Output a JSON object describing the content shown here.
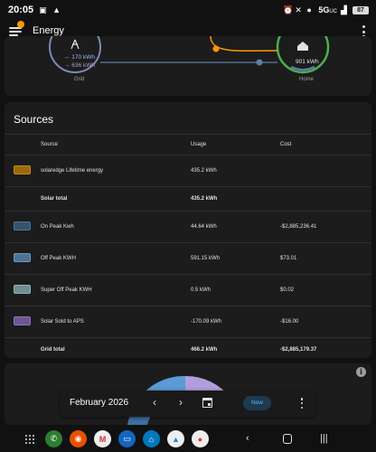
{
  "status_bar": {
    "time": "20:05",
    "signal_label": "5G",
    "signal_sub": "UC",
    "battery": "87"
  },
  "app_bar": {
    "title": "Energy"
  },
  "flow": {
    "grid_in": "← 170 kWh",
    "grid_out": "→ 636 kWh",
    "grid_label": "Grid",
    "home_value": "901 kWh",
    "home_label": "Home",
    "colors": {
      "grid": "#7e8bb8",
      "home": "#4caf50",
      "solar": "#ff9800",
      "link": "#5b7fa6"
    }
  },
  "sources": {
    "title": "Sources",
    "headers": {
      "source": "Source",
      "usage": "Usage",
      "cost": "Cost"
    },
    "solar_items": [
      {
        "name": "solaredge Lifetime energy",
        "usage": "435.2 kWh",
        "cost": "",
        "color": "#9a6a0b",
        "border": "#c88a10"
      }
    ],
    "solar_total": {
      "label": "Solar total",
      "usage": "435.2 kWh",
      "cost": ""
    },
    "grid_items": [
      {
        "name": "On Peak Kwh",
        "usage": "44.64 kWh",
        "cost": "-$2,885,236.41",
        "color": "#35536e",
        "border": "#4f7698"
      },
      {
        "name": "Off Peak KWH",
        "usage": "591.15 kWh",
        "cost": "$73.01",
        "color": "#4d7394",
        "border": "#6e96b8"
      },
      {
        "name": "Super Off Peak KWH",
        "usage": "0.5 kWh",
        "cost": "$0.02",
        "color": "#6c8f92",
        "border": "#8fb3b6"
      },
      {
        "name": "Solar Sold to APS",
        "usage": "-170.09 kWh",
        "cost": "-$16.00",
        "color": "#6e5596",
        "border": "#8f76b8"
      }
    ],
    "grid_total": {
      "label": "Grid total",
      "usage": "466.2 kWh",
      "cost": "-$2,885,179.37"
    }
  },
  "date_picker": {
    "label": "February 2026",
    "now_label": "Now"
  }
}
